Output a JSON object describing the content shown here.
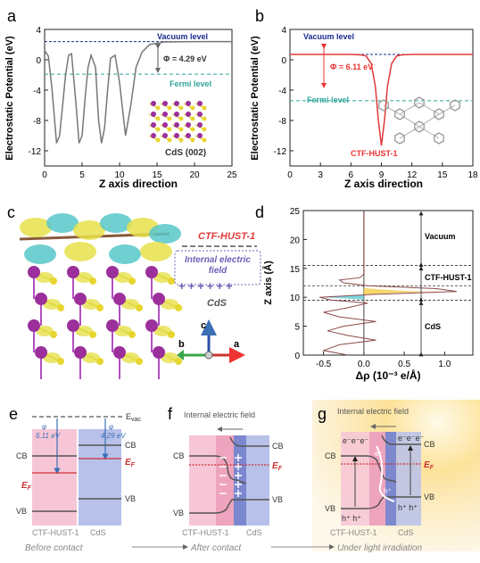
{
  "panels": {
    "a": {
      "letter": "a",
      "ylabel": "Electrostatic Potential (eV)",
      "xlabel": "Z axis direction",
      "vacuum": "Vacuum level",
      "fermi": "Fermi level",
      "phi": "Φ = 4.29 eV",
      "inset": "CdS (002)",
      "xticks": [
        "0",
        "5",
        "10",
        "15",
        "20",
        "25"
      ],
      "yticks": [
        "4",
        "0",
        "-4",
        "-8",
        "-12"
      ]
    },
    "b": {
      "letter": "b",
      "ylabel": "Electrostatic Potential (eV)",
      "xlabel": "Z axis direction",
      "vacuum": "Vacuum level",
      "fermi": "Fermi level",
      "phi": "Φ = 6.11 eV",
      "inset": "CTF-HUST-1",
      "xticks": [
        "0",
        "3",
        "6",
        "9",
        "12",
        "15",
        "18"
      ],
      "yticks": [
        "4",
        "0",
        "-4",
        "-8",
        "-12"
      ]
    },
    "c": {
      "letter": "c",
      "ctf": "CTF-HUST-1",
      "field1": "Internal electric",
      "field2": "field",
      "plus": "++++++",
      "cds": "CdS",
      "axis_c": "c",
      "axis_a": "a",
      "axis_b": "b"
    },
    "d": {
      "letter": "d",
      "ylabel": "Z axis (Å)",
      "xlabel": "Δρ (10⁻³ e/Å)",
      "vacuum": "Vacuum",
      "ctf": "CTF-HUST-1",
      "cds": "CdS",
      "xticks": [
        "-0.5",
        "0.0",
        "0.5",
        "1.0"
      ],
      "yticks": [
        "0",
        "5",
        "10",
        "15",
        "20",
        "25"
      ]
    },
    "e": {
      "letter": "e",
      "evac": "E",
      "evac_sub": "vac",
      "phi1_sym": "φ",
      "phi1": "6.11 eV",
      "phi2_sym": "φ",
      "phi2": "4.29 eV",
      "cb": "CB",
      "vb": "VB",
      "ef": "E",
      "ef_sub": "F",
      "mat1": "CTF-HUST-1",
      "mat2": "CdS",
      "caption": "Before contact"
    },
    "f": {
      "letter": "f",
      "field": "Internal electric field",
      "cb": "CB",
      "vb": "VB",
      "ef": "E",
      "ef_sub": "F",
      "mat1": "CTF-HUST-1",
      "mat2": "CdS",
      "caption": "After contact"
    },
    "g": {
      "letter": "g",
      "field": "Internal electric field",
      "cb": "CB",
      "vb": "VB",
      "ef": "E",
      "ef_sub": "F",
      "electrons": "e⁻e⁻e⁻",
      "electron": "e⁻",
      "holes": "h⁺ h⁺",
      "hole": "h⁺",
      "mat1": "CTF-HUST-1",
      "mat2": "CdS",
      "caption": "Under light irradiation"
    }
  },
  "chart_data": [
    {
      "type": "line",
      "panel": "a",
      "title": "",
      "xlabel": "Z axis direction",
      "ylabel": "Electrostatic Potential (eV)",
      "xlim": [
        0,
        25
      ],
      "ylim": [
        -14,
        4
      ],
      "annotations": {
        "vacuum_level": 2.4,
        "fermi_level": -1.9,
        "work_function": 4.29
      },
      "x": [
        0,
        0.5,
        1.0,
        1.6,
        2.0,
        2.4,
        2.8,
        3.2,
        3.6,
        4.2,
        4.6,
        5.0,
        5.4,
        5.8,
        6.2,
        6.8,
        7.2,
        7.6,
        8.0,
        8.4,
        8.8,
        9.4,
        10.0,
        10.8,
        11.5,
        12.2,
        13.0,
        14.0,
        16.0,
        20.0,
        25.0
      ],
      "y": [
        1.2,
        0.5,
        -4,
        -11,
        -10,
        -6,
        -2,
        0.6,
        0.8,
        -6,
        -11,
        -10,
        -5,
        -1,
        0.6,
        -1,
        -8,
        -11,
        -9,
        -4,
        0.2,
        0.6,
        -3,
        -10,
        -6,
        -1,
        1.0,
        2.0,
        2.35,
        2.4,
        2.4
      ]
    },
    {
      "type": "line",
      "panel": "b",
      "title": "",
      "xlabel": "Z axis direction",
      "ylabel": "Electrostatic Potential (eV)",
      "xlim": [
        0,
        18
      ],
      "ylim": [
        -14,
        4
      ],
      "annotations": {
        "vacuum_level": 0.7,
        "fermi_level": -5.4,
        "work_function": 6.11
      },
      "x": [
        0,
        6,
        7,
        7.5,
        8.0,
        8.4,
        8.7,
        9.0,
        9.3,
        9.6,
        10.0,
        10.5,
        11,
        12,
        18
      ],
      "y": [
        0.7,
        0.7,
        0.65,
        0.5,
        -0.5,
        -3.5,
        -8,
        -11.3,
        -8,
        -3.5,
        -0.5,
        0.5,
        0.65,
        0.7,
        0.7
      ]
    },
    {
      "type": "line",
      "panel": "d",
      "title": "",
      "xlabel": "Δρ (10⁻³ e/Å)",
      "ylabel": "Z axis (Å)",
      "xlim": [
        -0.75,
        1.35
      ],
      "ylim": [
        0,
        25
      ],
      "annotations": {
        "boundaries": [
          9.5,
          12.0,
          15.5
        ],
        "regions": [
          "CdS",
          "CTF-HUST-1",
          "Vacuum"
        ]
      },
      "z": [
        0,
        0.8,
        1.8,
        2.6,
        3.4,
        4.2,
        5.0,
        5.8,
        6.6,
        7.4,
        8.2,
        9.0,
        9.5,
        10.0,
        10.5,
        11.0,
        11.5,
        12.0,
        12.5,
        13.0,
        13.4,
        14.0,
        16.0,
        25.0
      ],
      "drho": [
        -0.2,
        -0.5,
        -0.3,
        0.15,
        -0.2,
        -0.45,
        -0.25,
        0.15,
        -0.3,
        -0.5,
        -0.2,
        0.05,
        -0.4,
        -0.55,
        0.1,
        1.15,
        0.9,
        0.05,
        -0.25,
        -0.3,
        -0.05,
        0,
        0,
        0
      ]
    }
  ]
}
